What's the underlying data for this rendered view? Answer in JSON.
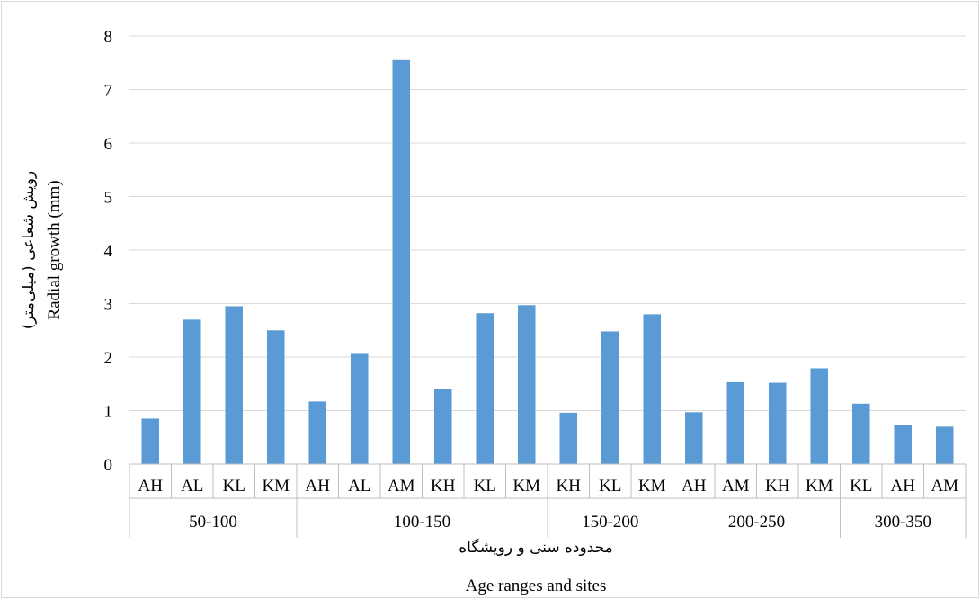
{
  "chart_data": {
    "type": "bar",
    "groups": [
      {
        "label": "50-100",
        "categories": [
          "AH",
          "AL",
          "KL",
          "KM"
        ],
        "values": [
          0.85,
          2.7,
          2.95,
          2.5
        ]
      },
      {
        "label": "100-150",
        "categories": [
          "AH",
          "AL",
          "AM",
          "KH",
          "KL",
          "KM"
        ],
        "values": [
          1.17,
          2.06,
          7.55,
          1.4,
          2.82,
          2.97
        ]
      },
      {
        "label": "150-200",
        "categories": [
          "KH",
          "KL",
          "KM"
        ],
        "values": [
          0.96,
          2.48,
          2.8
        ]
      },
      {
        "label": "200-250",
        "categories": [
          "AH",
          "AM",
          "KH",
          "KM"
        ],
        "values": [
          0.97,
          1.53,
          1.52,
          1.79
        ]
      },
      {
        "label": "300-350",
        "categories": [
          "KL",
          "AH",
          "AM"
        ],
        "values": [
          1.13,
          0.73,
          0.7
        ]
      }
    ],
    "ylim": [
      0,
      8
    ],
    "yticks": [
      0,
      1,
      2,
      3,
      4,
      5,
      6,
      7,
      8
    ],
    "ylabel_en": "Radial growth (mm)",
    "ylabel_fa": "رویش شعاعی (میلی‌متر)",
    "xlabel_fa": "محدوده سنی و رویشگاه",
    "xlabel_en": "Age ranges and sites",
    "bar_color": "#5b9bd5",
    "gridlines": true,
    "legend": "none"
  }
}
